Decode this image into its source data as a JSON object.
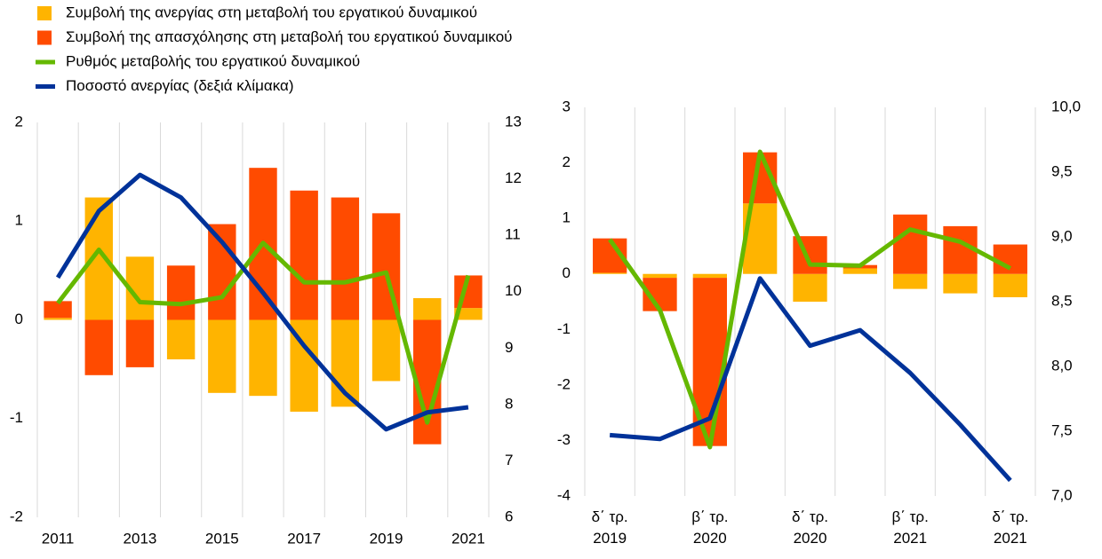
{
  "chart_data": [
    {
      "type": "bar",
      "categories": [
        "2011",
        null,
        "2013",
        null,
        "2015",
        null,
        "2017",
        null,
        "2019",
        null,
        "2021"
      ],
      "series": [
        {
          "name": "Συμβολή της ανεργίας στη μεταβολή του εργατικού δυναμικού",
          "type": "bar",
          "color": "#ffb400",
          "values": [
            0.02,
            1.24,
            0.64,
            -0.4,
            -0.74,
            -0.77,
            -0.93,
            -0.88,
            -0.62,
            0.22,
            0.12
          ]
        },
        {
          "name": "Συμβολή της απασχόλησης στη μεταβολή του εργατικού δυναμικού",
          "type": "bar",
          "color": "#ff4b00",
          "values": [
            0.17,
            -0.56,
            -0.48,
            0.55,
            0.97,
            1.54,
            1.31,
            1.24,
            1.08,
            -1.26,
            0.33
          ]
        },
        {
          "name": "Ρυθμός μεταβολής του εργατικού δυναμικού",
          "type": "line",
          "color": "#65b800",
          "values": [
            0.17,
            0.71,
            0.18,
            0.16,
            0.23,
            0.78,
            0.38,
            0.38,
            0.48,
            -1.04,
            0.45
          ]
        },
        {
          "name": "Ποσοστό ανεργίας (δεξιά κλίμακα)",
          "type": "line",
          "axis": "y2",
          "color": "#003299",
          "values": [
            10.25,
            11.43,
            12.07,
            11.67,
            10.88,
            9.98,
            9.04,
            8.2,
            7.56,
            7.86,
            7.95
          ]
        }
      ],
      "ylim": [
        -2,
        2
      ],
      "yticks": [
        -2,
        -1,
        0,
        1,
        2
      ],
      "y2lim": [
        6,
        13
      ],
      "y2ticks": [
        6,
        7,
        8,
        9,
        10,
        11,
        12,
        13
      ]
    },
    {
      "type": "bar",
      "categories": [
        "δ΄ τρ.\n2019",
        null,
        "β΄ τρ.\n2020",
        null,
        "δ΄ τρ.\n2020",
        null,
        "β΄ τρ.\n2021",
        null,
        "δ΄ τρ.\n2021"
      ],
      "series": [
        {
          "type": "bar",
          "color": "#ffb400",
          "values": [
            0.02,
            -0.07,
            -0.07,
            1.27,
            -0.5,
            0.1,
            -0.27,
            -0.35,
            -0.42
          ]
        },
        {
          "type": "bar",
          "color": "#ff4b00",
          "values": [
            0.62,
            -0.6,
            -3.03,
            0.92,
            0.68,
            0.06,
            1.07,
            0.86,
            0.53
          ]
        },
        {
          "type": "line",
          "color": "#65b800",
          "values": [
            0.62,
            -0.65,
            -3.12,
            2.2,
            0.17,
            0.15,
            0.8,
            0.58,
            0.1
          ]
        },
        {
          "type": "line",
          "axis": "y2",
          "color": "#003299",
          "values": [
            7.47,
            7.44,
            7.6,
            8.68,
            8.16,
            8.28,
            7.95,
            7.55,
            7.12
          ]
        }
      ],
      "ylim": [
        -4,
        3
      ],
      "yticks": [
        -4,
        -3,
        -2,
        -1,
        0,
        1,
        2,
        3
      ],
      "y2lim": [
        7,
        10
      ],
      "y2ticks": [
        {
          "value": 7,
          "label": "7,0"
        },
        {
          "value": 7.5,
          "label": "7,5"
        },
        {
          "value": 8,
          "label": "8,0"
        },
        {
          "value": 8.5,
          "label": "8,5"
        },
        {
          "value": 9,
          "label": "9,0"
        },
        {
          "value": 9.5,
          "label": "9,5"
        },
        {
          "value": 10,
          "label": "10,0"
        }
      ]
    }
  ]
}
